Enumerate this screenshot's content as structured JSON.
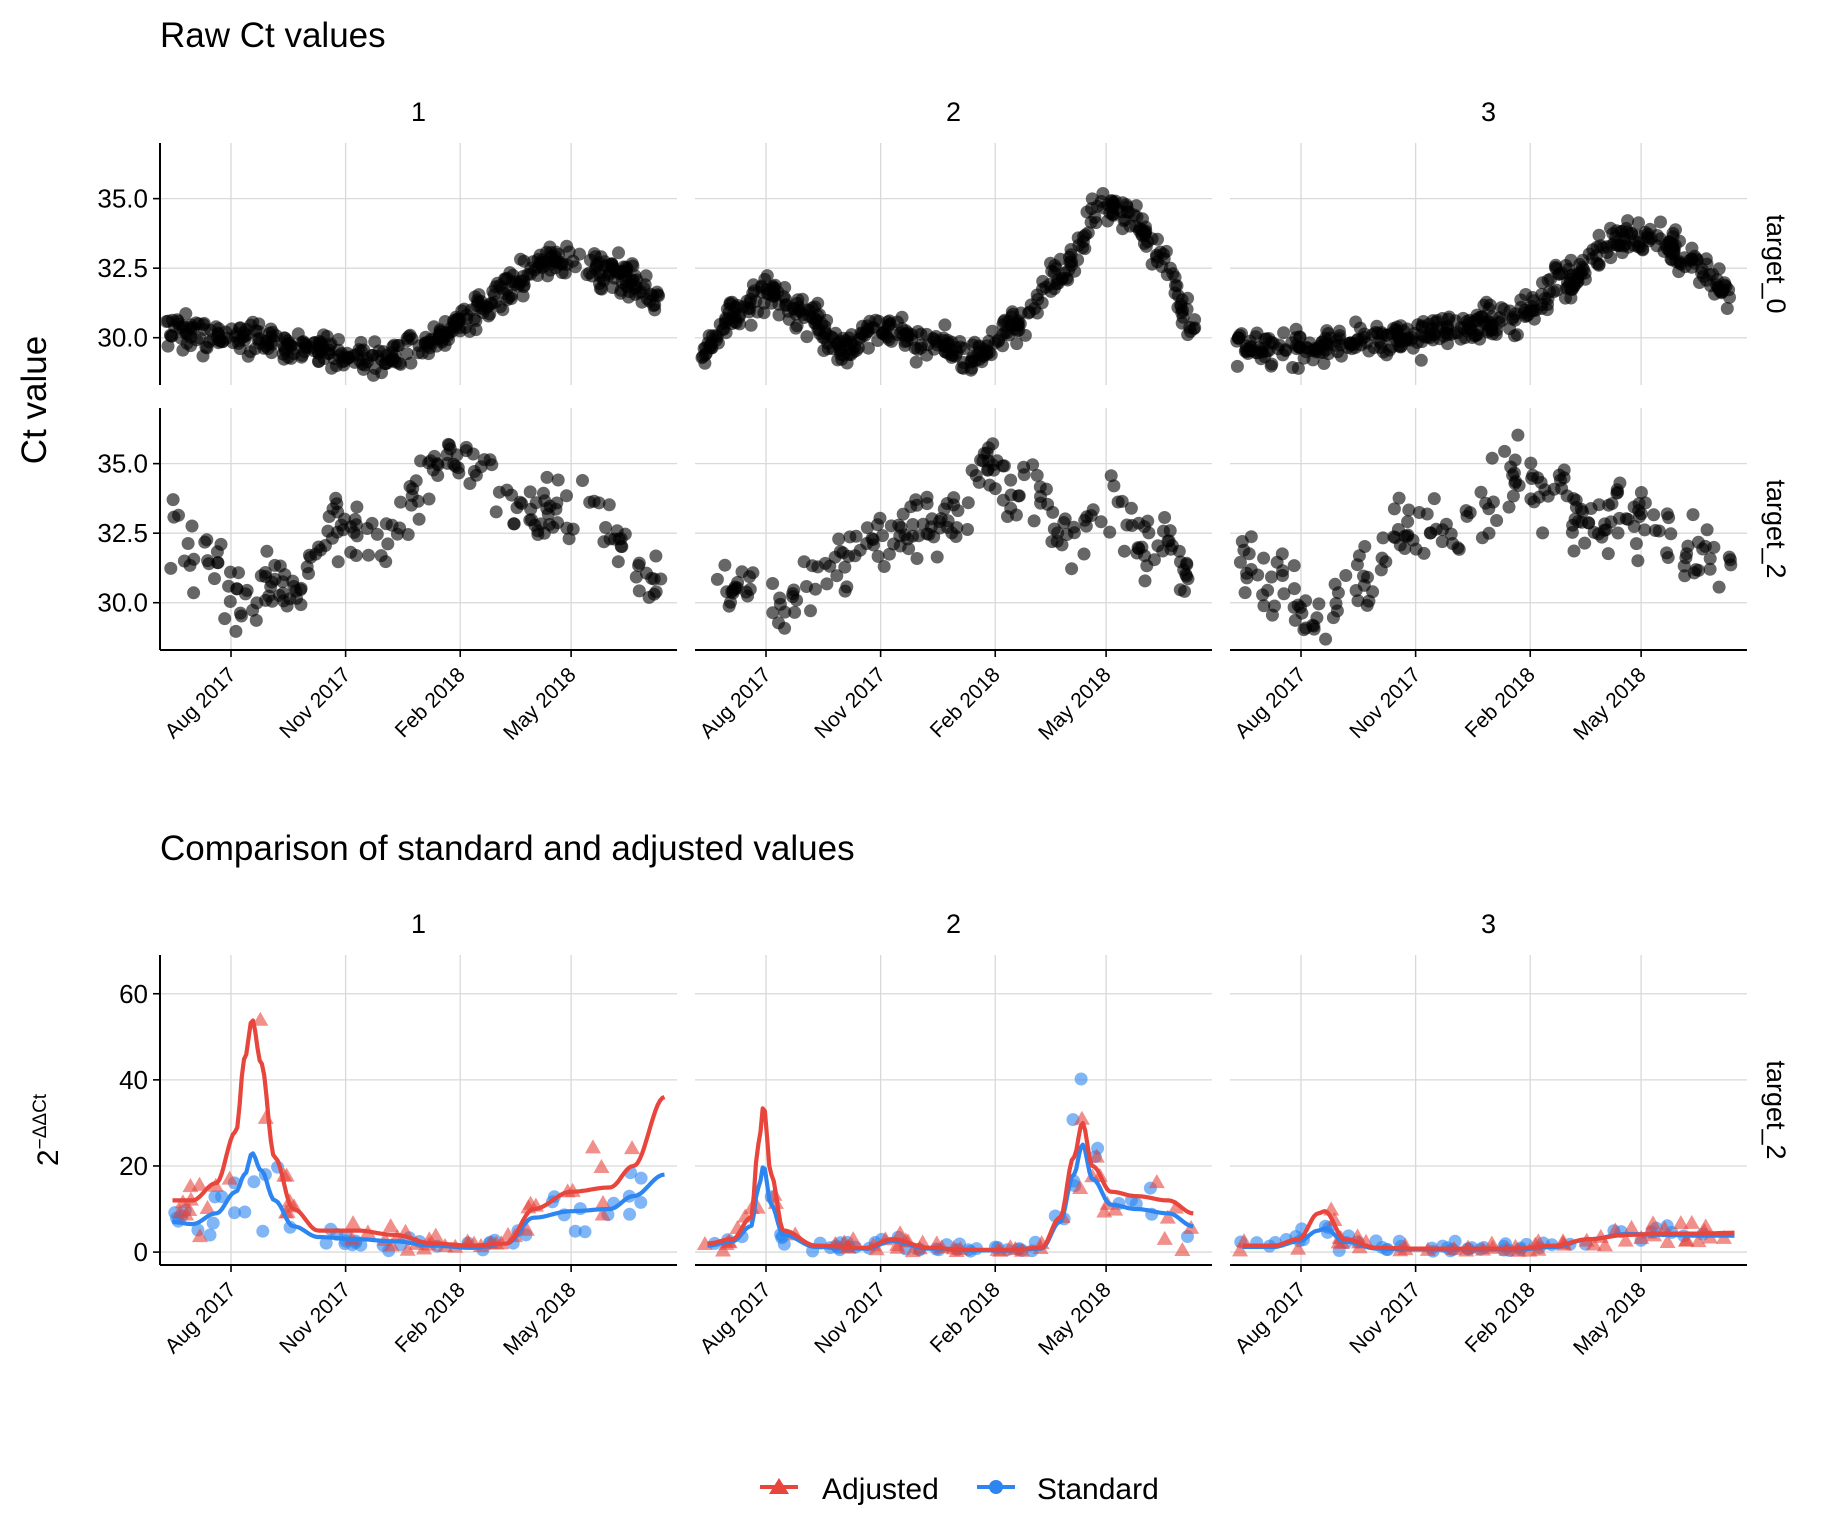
{
  "colors": {
    "adjusted": "#e8453c",
    "standard": "#2c85f0",
    "raw_points": "#000000",
    "grid": "#d9d9d9",
    "axis": "#000000"
  },
  "legend": {
    "position": "bottom",
    "items": [
      {
        "label": "Adjusted",
        "color": "#e8453c",
        "shape": "triangle"
      },
      {
        "label": "Standard",
        "color": "#2c85f0",
        "shape": "circle"
      }
    ]
  },
  "chart_data": [
    {
      "type": "scatter",
      "title": "Raw Ct values",
      "ylabel": "Ct value",
      "xlabel": "",
      "grid": true,
      "facet_cols": [
        "1",
        "2",
        "3"
      ],
      "facet_rows": [
        "target_0",
        "target_2"
      ],
      "x_ticks": [
        "Aug 2017",
        "Nov 2017",
        "Feb 2018",
        "May 2018"
      ],
      "x_tick_dates": [
        "2017-08-01",
        "2017-11-01",
        "2018-02-01",
        "2018-05-01"
      ],
      "x_range": [
        "2017-06-05",
        "2018-07-25"
      ],
      "y_ticks": [
        30.0,
        32.5,
        35.0
      ],
      "y_tick_labels": [
        "30.0",
        "32.5",
        "35.0"
      ],
      "ylim": [
        28.3,
        37.0
      ],
      "trends": {
        "target_0": [
          {
            "dates": [
              "2017-06-10",
              "2017-08-01",
              "2017-10-01",
              "2017-11-15",
              "2018-01-01",
              "2018-02-15",
              "2018-04-01",
              "2018-05-01",
              "2018-06-01",
              "2018-07-10"
            ],
            "values": [
              30.3,
              30.1,
              29.6,
              29.3,
              29.6,
              31.0,
              32.5,
              32.8,
              32.3,
              31.5
            ]
          },
          {
            "dates": [
              "2017-06-10",
              "2017-07-10",
              "2017-08-01",
              "2017-09-01",
              "2017-10-01",
              "2017-11-01",
              "2017-12-15",
              "2018-01-15",
              "2018-02-15",
              "2018-04-01",
              "2018-04-25",
              "2018-05-20",
              "2018-06-15",
              "2018-07-10"
            ],
            "values": [
              29.5,
              31.0,
              31.7,
              30.8,
              29.7,
              30.3,
              29.8,
              29.4,
              30.3,
              32.5,
              34.7,
              34.3,
              32.8,
              30.5
            ]
          },
          {
            "dates": [
              "2017-06-10",
              "2017-08-01",
              "2017-10-01",
              "2017-12-01",
              "2018-01-15",
              "2018-03-01",
              "2018-04-20",
              "2018-05-10",
              "2018-06-10",
              "2018-07-10"
            ],
            "values": [
              29.8,
              29.6,
              29.9,
              30.3,
              30.6,
              32.0,
              33.7,
              33.6,
              32.8,
              31.6
            ]
          }
        ],
        "target_2": [
          {
            "dates": [
              "2017-06-10",
              "2017-07-10",
              "2017-08-10",
              "2017-09-15",
              "2017-10-20",
              "2017-12-01",
              "2018-01-20",
              "2018-02-20",
              "2018-03-20",
              "2018-04-20",
              "2018-05-20",
              "2018-06-20",
              "2018-07-10"
            ],
            "values": [
              32.5,
              31.3,
              30.2,
              30.5,
              32.4,
              32.5,
              35.4,
              34.8,
              33.2,
              33.2,
              33.3,
              31.5,
              30.6
            ]
          },
          {
            "dates": [
              "2017-06-10",
              "2017-07-15",
              "2017-08-20",
              "2017-10-01",
              "2017-11-15",
              "2018-01-01",
              "2018-01-25",
              "2018-02-20",
              "2018-04-01",
              "2018-05-01",
              "2018-06-10",
              "2018-07-10"
            ],
            "values": [
              31.0,
              30.6,
              30.0,
              31.8,
              32.2,
              33.3,
              35.0,
              34.0,
              32.5,
              33.0,
              32.2,
              30.8
            ]
          },
          {
            "dates": [
              "2017-06-10",
              "2017-07-10",
              "2017-08-15",
              "2017-09-20",
              "2017-10-20",
              "2017-12-01",
              "2018-01-20",
              "2018-02-20",
              "2018-03-20",
              "2018-04-20",
              "2018-05-20",
              "2018-06-20",
              "2018-07-10"
            ],
            "values": [
              31.3,
              30.6,
              29.5,
              30.9,
              32.6,
              32.6,
              34.4,
              34.0,
              32.8,
              33.1,
              32.7,
              31.8,
              31.0
            ]
          }
        ]
      }
    },
    {
      "type": "line",
      "title": "Comparison of standard and adjusted values",
      "ylabel": "2",
      "ylabel_superscript": "−ΔΔCt",
      "xlabel": "",
      "grid": true,
      "facet_cols": [
        "1",
        "2",
        "3"
      ],
      "facet_rows": [
        "target_2"
      ],
      "x_ticks": [
        "Aug 2017",
        "Nov 2017",
        "Feb 2018",
        "May 2018"
      ],
      "x_tick_dates": [
        "2017-08-01",
        "2017-11-01",
        "2018-02-01",
        "2018-05-01"
      ],
      "x_range": [
        "2017-06-05",
        "2018-07-25"
      ],
      "y_ticks": [
        0,
        20,
        40,
        60
      ],
      "y_tick_labels": [
        "0",
        "20",
        "40",
        "60"
      ],
      "ylim": [
        -3,
        69
      ],
      "panels": [
        {
          "facet": "1",
          "series": [
            {
              "name": "Adjusted",
              "dates": [
                "2017-06-15",
                "2017-07-01",
                "2017-07-20",
                "2017-08-05",
                "2017-08-12",
                "2017-08-18",
                "2017-08-25",
                "2017-09-05",
                "2017-09-20",
                "2017-10-10",
                "2017-11-10",
                "2017-12-10",
                "2018-01-10",
                "2018-02-10",
                "2018-03-10",
                "2018-04-01",
                "2018-05-01",
                "2018-06-01",
                "2018-06-20",
                "2018-07-15"
              ],
              "values": [
                12,
                12,
                16,
                28,
                45,
                54,
                44,
                22,
                10,
                5,
                5,
                4,
                2,
                1.5,
                2,
                10,
                14,
                15,
                20,
                36
              ]
            },
            {
              "name": "Standard",
              "dates": [
                "2017-06-15",
                "2017-07-01",
                "2017-07-20",
                "2017-08-05",
                "2017-08-12",
                "2017-08-18",
                "2017-08-25",
                "2017-09-05",
                "2017-09-20",
                "2017-10-10",
                "2017-11-10",
                "2017-12-10",
                "2018-01-10",
                "2018-02-10",
                "2018-03-10",
                "2018-04-01",
                "2018-05-01",
                "2018-06-01",
                "2018-06-20",
                "2018-07-15"
              ],
              "values": [
                7,
                6.5,
                9,
                14,
                18,
                23,
                19,
                12,
                6,
                3.5,
                3,
                2.5,
                1.5,
                1,
                2,
                8,
                9.5,
                10,
                13,
                18
              ]
            }
          ]
        },
        {
          "facet": "2",
          "series": [
            {
              "name": "Adjusted",
              "dates": [
                "2017-06-15",
                "2017-07-05",
                "2017-07-20",
                "2017-07-26",
                "2017-07-30",
                "2017-08-05",
                "2017-08-15",
                "2017-09-10",
                "2017-10-20",
                "2017-11-10",
                "2017-12-10",
                "2018-01-10",
                "2018-02-10",
                "2018-03-10",
                "2018-03-25",
                "2018-04-05",
                "2018-04-12",
                "2018-04-20",
                "2018-05-05",
                "2018-05-25",
                "2018-06-20",
                "2018-07-10"
              ],
              "values": [
                2,
                3,
                8,
                25,
                34,
                18,
                5,
                1.5,
                1,
                3,
                1,
                0.5,
                0.5,
                1,
                8,
                22,
                30,
                20,
                14,
                13,
                12,
                9
              ]
            },
            {
              "name": "Standard",
              "dates": [
                "2017-06-15",
                "2017-07-05",
                "2017-07-20",
                "2017-07-26",
                "2017-07-30",
                "2017-08-05",
                "2017-08-15",
                "2017-09-10",
                "2017-10-20",
                "2017-11-10",
                "2017-12-10",
                "2018-01-10",
                "2018-02-10",
                "2018-03-10",
                "2018-03-25",
                "2018-04-05",
                "2018-04-12",
                "2018-04-20",
                "2018-05-05",
                "2018-05-25",
                "2018-06-20",
                "2018-07-10"
              ],
              "values": [
                1.5,
                2.5,
                6,
                15,
                20,
                11,
                4,
                1.2,
                0.8,
                2.5,
                0.8,
                0.4,
                0.4,
                0.8,
                7,
                18,
                25,
                17,
                11,
                10,
                9,
                6
              ]
            }
          ]
        },
        {
          "facet": "3",
          "series": [
            {
              "name": "Adjusted",
              "dates": [
                "2017-06-15",
                "2017-07-10",
                "2017-07-30",
                "2017-08-15",
                "2017-08-20",
                "2017-09-05",
                "2017-10-01",
                "2017-11-01",
                "2017-12-15",
                "2018-01-20",
                "2018-02-20",
                "2018-03-20",
                "2018-04-20",
                "2018-05-20",
                "2018-06-20",
                "2018-07-15"
              ],
              "values": [
                1.5,
                1.5,
                3,
                9,
                9.5,
                3,
                1,
                0.8,
                0.8,
                0.8,
                1.5,
                3,
                4,
                4.3,
                4.3,
                4.5
              ]
            },
            {
              "name": "Standard",
              "dates": [
                "2017-06-15",
                "2017-07-10",
                "2017-07-30",
                "2017-08-15",
                "2017-08-20",
                "2017-09-05",
                "2017-10-01",
                "2017-11-01",
                "2017-12-15",
                "2018-01-20",
                "2018-02-20",
                "2018-03-20",
                "2018-04-20",
                "2018-05-20",
                "2018-06-20",
                "2018-07-15"
              ],
              "values": [
                1.2,
                1.2,
                2.5,
                5,
                5.5,
                2.5,
                0.8,
                0.6,
                0.6,
                0.6,
                1.2,
                3,
                4.2,
                4,
                3.8,
                3.8
              ]
            }
          ]
        }
      ]
    }
  ]
}
